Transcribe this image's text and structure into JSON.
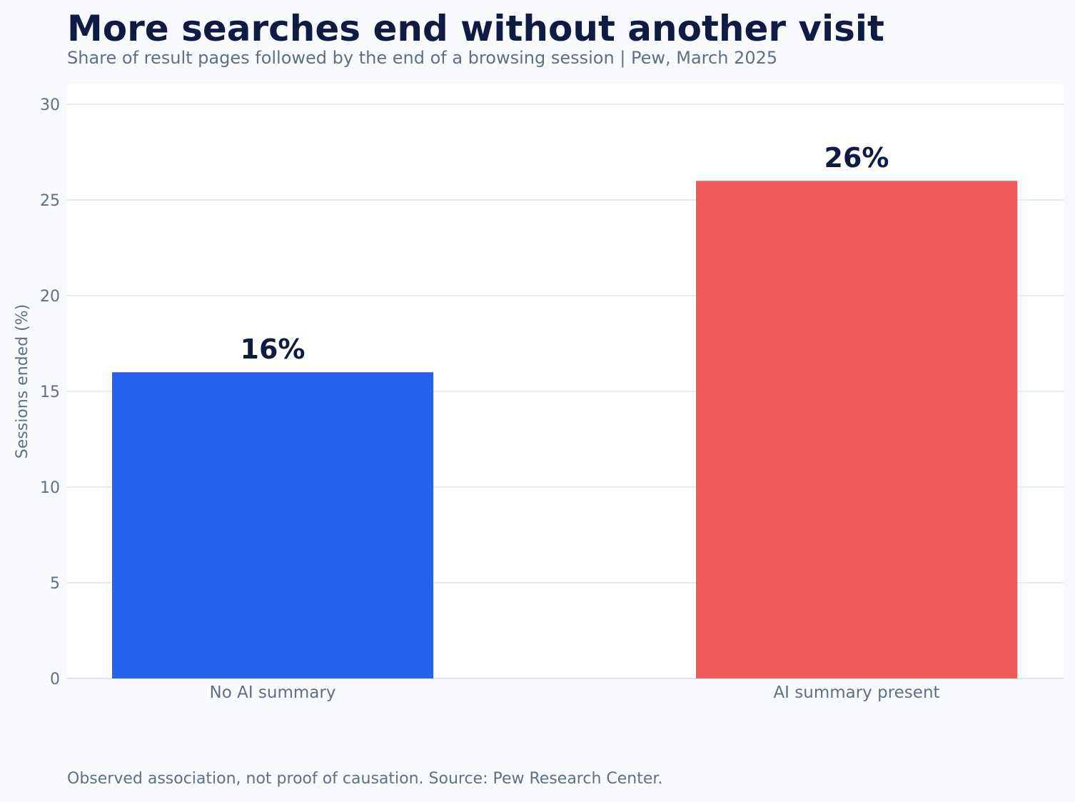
{
  "chart_data": {
    "type": "bar",
    "title": "More searches end without another visit",
    "subtitle": "Share of result pages followed by the end of a browsing session | Pew, March 2025",
    "ylabel": "Sessions ended (%)",
    "xlabel": "",
    "categories": [
      "No AI summary",
      "AI summary present"
    ],
    "values": [
      16,
      26
    ],
    "value_labels": [
      "16%",
      "26%"
    ],
    "bar_colors": [
      "#2563eb",
      "#ef5b5b"
    ],
    "ylim": [
      0,
      30
    ],
    "yticks": [
      "0",
      "5",
      "10",
      "15",
      "20",
      "25",
      "30"
    ],
    "grid": true,
    "legend": "none",
    "footnote": "Observed association, not proof of causation. Source: Pew Research Center."
  }
}
